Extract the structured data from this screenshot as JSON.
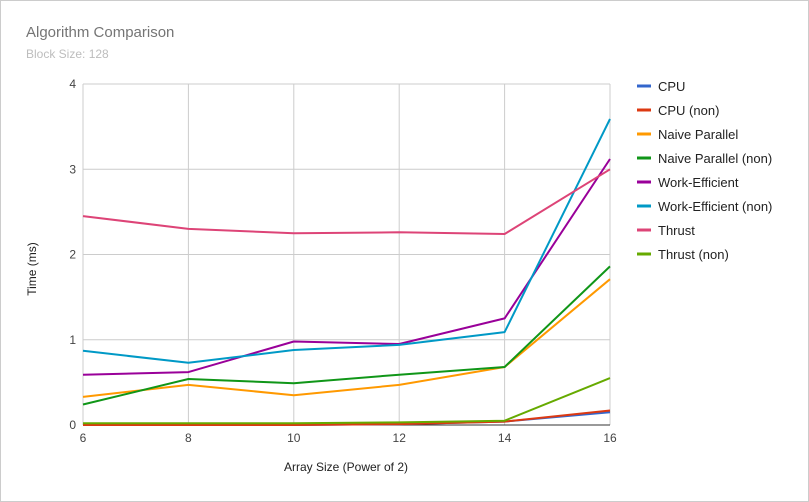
{
  "chart_data": {
    "type": "line",
    "title": "Algorithm Comparison",
    "subtitle": "Block Size: 128",
    "xlabel": "Array Size (Power of 2)",
    "ylabel": "Time (ms)",
    "x": [
      6,
      8,
      10,
      12,
      14,
      16
    ],
    "xlim": [
      6,
      16
    ],
    "ylim": [
      0,
      4
    ],
    "xticks": [
      6,
      8,
      10,
      12,
      14,
      16
    ],
    "yticks": [
      0,
      1,
      2,
      3,
      4
    ],
    "grid": true,
    "legend": "right",
    "series": [
      {
        "name": "CPU",
        "color": "#3366cc",
        "values": [
          0.0,
          0.0,
          0.0,
          0.01,
          0.04,
          0.15
        ]
      },
      {
        "name": "CPU (non)",
        "color": "#dc3912",
        "values": [
          0.0,
          0.0,
          0.0,
          0.01,
          0.04,
          0.17
        ]
      },
      {
        "name": "Naive Parallel",
        "color": "#ff9900",
        "values": [
          0.33,
          0.47,
          0.35,
          0.47,
          0.68,
          1.71
        ]
      },
      {
        "name": "Naive Parallel (non)",
        "color": "#109618",
        "values": [
          0.24,
          0.54,
          0.49,
          0.59,
          0.68,
          1.86
        ]
      },
      {
        "name": "Work-Efficient",
        "color": "#990099",
        "values": [
          0.59,
          0.62,
          0.98,
          0.95,
          1.25,
          3.12
        ]
      },
      {
        "name": "Work-Efficient (non)",
        "color": "#0099c6",
        "values": [
          0.87,
          0.73,
          0.88,
          0.94,
          1.09,
          3.59
        ]
      },
      {
        "name": "Thrust",
        "color": "#dd4477",
        "values": [
          2.45,
          2.3,
          2.25,
          2.26,
          2.24,
          3.0
        ]
      },
      {
        "name": "Thrust (non)",
        "color": "#66aa00",
        "values": [
          0.02,
          0.02,
          0.02,
          0.03,
          0.05,
          0.55
        ]
      }
    ]
  }
}
